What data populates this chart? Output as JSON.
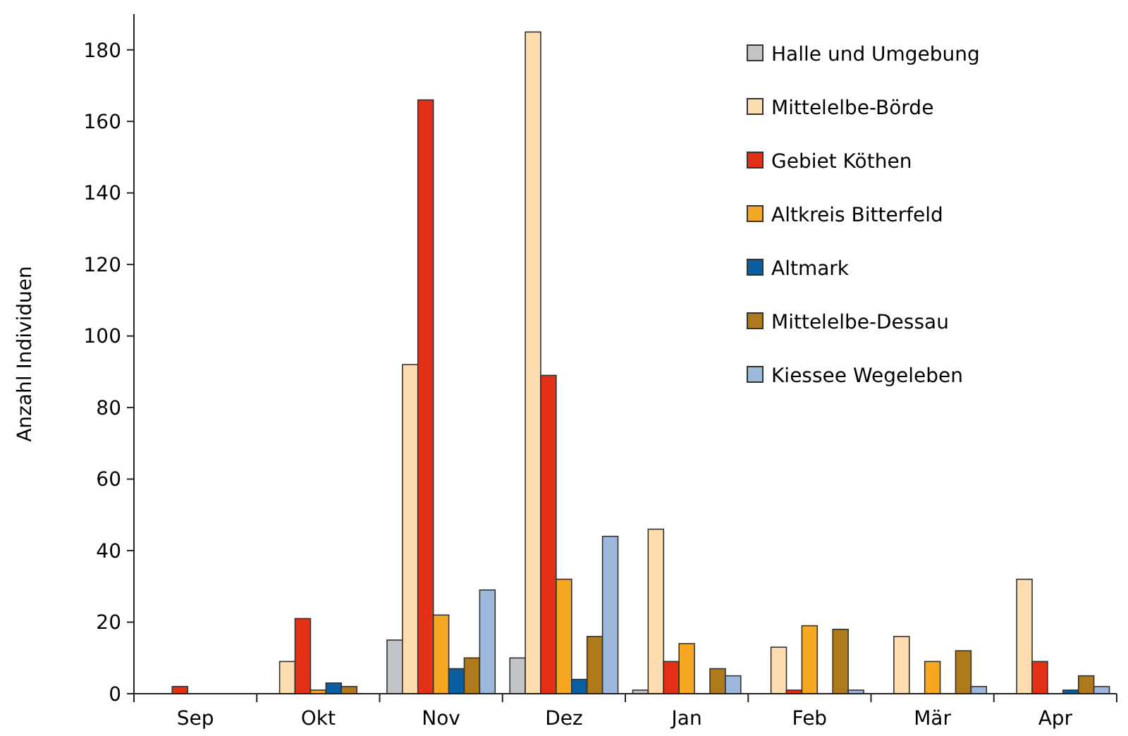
{
  "chart_data": {
    "type": "bar",
    "ylabel": "Anzahl Individuen",
    "categories": [
      "Sep",
      "Okt",
      "Nov",
      "Dez",
      "Jan",
      "Feb",
      "Mär",
      "Apr"
    ],
    "series": [
      {
        "name": "Halle und Umgebung",
        "color": "#c0c4c6",
        "values": [
          0,
          0,
          15,
          10,
          1,
          0,
          0,
          0
        ]
      },
      {
        "name": "Mittelelbe-Börde",
        "color": "#fddcb0",
        "values": [
          0,
          9,
          92,
          185,
          46,
          13,
          16,
          32
        ]
      },
      {
        "name": "Gebiet Köthen",
        "color": "#e33016",
        "values": [
          2,
          21,
          166,
          89,
          9,
          1,
          0,
          9
        ]
      },
      {
        "name": "Altkreis Bitterfeld",
        "color": "#f6a823",
        "values": [
          0,
          1,
          22,
          32,
          14,
          19,
          9,
          0
        ]
      },
      {
        "name": "Altmark",
        "color": "#0b5fa0",
        "values": [
          0,
          3,
          7,
          4,
          0,
          0,
          0,
          1
        ]
      },
      {
        "name": "Mittelelbe-Dessau",
        "color": "#ae7a1b",
        "values": [
          0,
          2,
          10,
          16,
          7,
          18,
          12,
          5
        ]
      },
      {
        "name": "Kiessee Wegeleben",
        "color": "#9cb8dc",
        "values": [
          0,
          0,
          29,
          44,
          5,
          1,
          2,
          2
        ]
      }
    ],
    "ylim": [
      0,
      190
    ],
    "yticks": [
      0,
      20,
      40,
      60,
      80,
      100,
      120,
      140,
      160,
      180
    ],
    "grid": false,
    "legend": "top right"
  }
}
